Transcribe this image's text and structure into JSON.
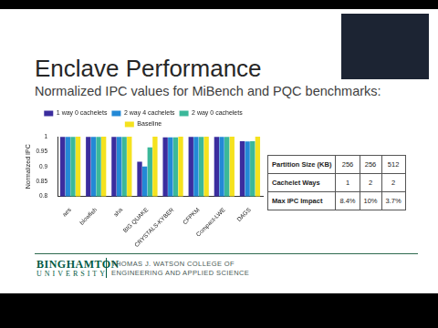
{
  "slide": {
    "title": "Enclave Performance",
    "subtitle": "Normalized IPC values for MiBench and PQC benchmarks:",
    "table": {
      "rows": [
        [
          "Partition Size (KB)",
          "256",
          "256",
          "512"
        ],
        [
          "Cachelet Ways",
          "1",
          "2",
          "2"
        ],
        [
          "Max IPC Impact",
          "8.4%",
          "10%",
          "3.7%"
        ]
      ]
    },
    "footer": {
      "logo": [
        "BINGHAMTON",
        "UNIVERSITY"
      ],
      "college": [
        "THOMAS J. WATSON COLLEGE OF",
        "ENGINEERING AND APPLIED SCIENCE"
      ]
    }
  },
  "chart_data": {
    "type": "bar",
    "y_label": "Normalized IPC",
    "categories": [
      "aes",
      "blowfish",
      "sha",
      "BIG QUAKE",
      "CRYSTALS-KYBER",
      "CFPKM",
      "Compact-LWE",
      "DAGS"
    ],
    "series": [
      {
        "name": "1 way 0 cachelets",
        "color": "#3b2d9e",
        "values": [
          0.999,
          0.999,
          0.999,
          0.916,
          0.998,
          0.999,
          0.999,
          0.985
        ]
      },
      {
        "name": "2 way 4 cachelets",
        "color": "#2389d6",
        "values": [
          0.999,
          0.999,
          0.999,
          0.9,
          0.998,
          0.999,
          0.999,
          0.984
        ]
      },
      {
        "name": "2 way 0 cachelets",
        "color": "#3bb89a",
        "values": [
          0.999,
          0.999,
          0.999,
          0.964,
          0.998,
          0.999,
          0.999,
          0.985
        ]
      },
      {
        "name": "Baseline",
        "color": "#f5e21e",
        "values": [
          1,
          1,
          1,
          1,
          1,
          1,
          1,
          1
        ]
      }
    ],
    "ylim": [
      0.8,
      1
    ],
    "yticks": [
      0.8,
      0.85,
      0.9,
      0.95,
      1
    ],
    "grid": false,
    "legend": "top"
  }
}
